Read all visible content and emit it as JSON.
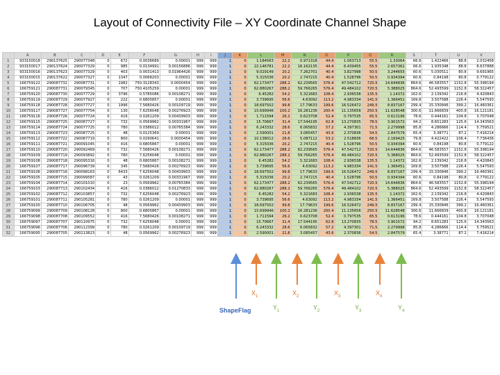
{
  "title": "Layout of Connectivity File – XY Coordinate Channel Shape",
  "columns": [
    "",
    "A",
    "B",
    "C",
    "D",
    "E",
    "F",
    "G",
    "H",
    "I",
    "J",
    "K",
    "L",
    "M",
    "N",
    "O",
    "P",
    "Q",
    "R",
    "S",
    "T",
    "U",
    "V"
  ],
  "rows": [
    [
      "1",
      "933150018",
      "290137625",
      "290077348",
      "0",
      "672",
      "0.0036689",
      "0.00001",
      "999",
      "999",
      "1",
      "0",
      "1.184563",
      "22.2",
      "0.971318",
      "44.4",
      "1.063713",
      "55.5",
      "1.33064",
      "66.6",
      "1.422466",
      "88.8",
      "2.032458"
    ],
    [
      "2",
      "933150017",
      "290137624",
      "290077329",
      "0",
      "985",
      "0.0134991",
      "0.00156886",
      "999",
      "999",
      "1",
      "0",
      "22.146781",
      "22.2",
      "16.162135",
      "44.4",
      "6.439455",
      "55.5",
      "2.657361",
      "66.6",
      "1.935348",
      "88.8",
      "8.637888"
    ],
    [
      "3",
      "933150016",
      "290137623",
      "290077329",
      "0",
      "403",
      "0.0031413",
      "0.01964426",
      "999",
      "999",
      "1",
      "0",
      "9.029149",
      "20.2",
      "7.262701",
      "40.4",
      "3.827998",
      "50.5",
      "3.244655",
      "60.6",
      "5.030511",
      "80.8",
      "9.691965"
    ],
    [
      "4",
      "933150015",
      "290137622",
      "290077327",
      "0",
      "1347",
      "0.0068203",
      "0.00001",
      "999",
      "999",
      "1",
      "0",
      "5.315036",
      "20.2",
      "2.747215",
      "40.4",
      "1.528796",
      "50.5",
      "0.934394",
      "60.6",
      "0.84198",
      "80.8",
      "0.779122"
    ],
    [
      "5",
      "166759122",
      "290087732",
      "290087731",
      "0",
      "1982",
      "750.3128343",
      "0.0000454",
      "999",
      "999",
      "1",
      "0",
      "62.173477",
      "288.2",
      "62.239565",
      "576.4",
      "47.542712",
      "720.5",
      "14.644836",
      "864.6",
      "46.583557",
      "1152.8",
      "55.398194"
    ],
    [
      "6",
      "166759121",
      "290087731",
      "290079345",
      "0",
      "707",
      "750.4105259",
      "0.00001",
      "999",
      "999",
      "1",
      "0",
      "62.880267",
      "288.2",
      "59.766265",
      "576.4",
      "49.484102",
      "720.5",
      "5.388025",
      "864.6",
      "52.493599",
      "1152.8",
      "58.322457"
    ],
    [
      "7",
      "166759120",
      "290087730",
      "290077729",
      "0",
      "3796",
      "0.5785086",
      "0.00108271",
      "999",
      "999",
      "1",
      "0",
      "6.45282",
      "54.2",
      "5.321683",
      "108.4",
      "2.936538",
      "135.5",
      "1.14372",
      "162.6",
      "2.139342",
      "216.8",
      "4.420843"
    ],
    [
      "8",
      "166759119",
      "290087729",
      "290077927",
      "0",
      "222",
      "0.6805857",
      "0.00001",
      "999",
      "999",
      "1",
      "0",
      "3.739695",
      "56.6",
      "4.63092",
      "113.2",
      "4.983334",
      "141.5",
      "1.366451",
      "169.8",
      "3.507588",
      "226.4",
      "5.547593"
    ],
    [
      "9",
      "166759118",
      "290087728",
      "290077727",
      "0",
      "1996",
      "7.5680426",
      "0.00109719",
      "999",
      "999",
      "1",
      "0",
      "18.697502",
      "99.8",
      "17.79633",
      "199.6",
      "16.526472",
      "249.5",
      "8.837167",
      "299.4",
      "15.330846",
      "399.2",
      "16.460361"
    ],
    [
      "10",
      "166759117",
      "290087727",
      "290077754",
      "0",
      "130",
      "7.6256048",
      "0.00276923",
      "999",
      "999",
      "1",
      "0",
      "15.699946",
      "100.2",
      "16.281236",
      "200.4",
      "11.135656",
      "250.5",
      "11.628548",
      "300.6",
      "11.666839",
      "400.8",
      "16.121181"
    ],
    [
      "11",
      "166759116",
      "290087726",
      "290077724",
      "0",
      "416",
      "0.0261209",
      "0.00439903",
      "999",
      "999",
      "1",
      "0",
      "1.711594",
      "26.2",
      "0.623708",
      "52.4",
      "0.797535",
      "65.5",
      "0.613196",
      "78.6",
      "0.444161",
      "104.8",
      "3.707048"
    ],
    [
      "12",
      "166759115",
      "290087725",
      "290087727",
      "0",
      "732",
      "0.0569962",
      "0.00331967",
      "999",
      "999",
      "1",
      "0",
      "15.70667",
      "31.4",
      "17.544195",
      "62.8",
      "13.270835",
      "78.5",
      "3.901572",
      "94.2",
      "8.651283",
      "125.6",
      "14.343563"
    ],
    [
      "13",
      "166759114",
      "290087724",
      "290077725",
      "0",
      "780",
      "0.0386012",
      "0.00765384",
      "999",
      "999",
      "1",
      "0",
      "6.243332",
      "28.6",
      "6.065832",
      "57.2",
      "4.397301",
      "71.5",
      "2.279998",
      "85.8",
      "4.286666",
      "114.4",
      "5.759521"
    ],
    [
      "14",
      "166759113",
      "290087723",
      "290087725",
      "0",
      "48",
      "0.0125369",
      "0.00001",
      "999",
      "999",
      "1",
      "0",
      "2.590001",
      "21.8",
      "3.085457",
      "43.6",
      "2.370836",
      "54.5",
      "2.847579",
      "65.4",
      "3.38771",
      "87.2",
      "7.416214"
    ],
    [
      "15",
      "166759112",
      "290087722",
      "290087719",
      "0",
      "800",
      "0.0290641",
      "0.0000454",
      "999",
      "999",
      "1",
      "0",
      "10.138012",
      "26.6",
      "5.087112",
      "53.2",
      "2.518836",
      "66.5",
      "2.169425",
      "79.8",
      "4.422422",
      "106.4",
      "7.736436"
    ],
    [
      "16",
      "166759111",
      "290087721",
      "290091045",
      "0",
      "416",
      "0.6805867",
      "0.00001",
      "999",
      "999",
      "1",
      "0",
      "5.315036",
      "20.2",
      "2.747215",
      "40.4",
      "1.528796",
      "50.5",
      "0.934394",
      "60.6",
      "0.84198",
      "80.8",
      "0.779122"
    ],
    [
      "17",
      "166759110",
      "290087720",
      "290092469",
      "0",
      "732",
      "7.5680426",
      "0.00108271",
      "999",
      "999",
      "1",
      "0",
      "62.173477",
      "288.2",
      "62.239565",
      "576.4",
      "47.542712",
      "720.5",
      "14.644836",
      "864.6",
      "46.583557",
      "1152.8",
      "55.398194"
    ],
    [
      "18",
      "166759109",
      "290087719",
      "290093892",
      "0",
      "780",
      "7.6256048",
      "0.00001",
      "999",
      "999",
      "1",
      "0",
      "62.880267",
      "288.2",
      "59.766265",
      "576.4",
      "49.484102",
      "720.5",
      "5.388025",
      "864.6",
      "52.493599",
      "1152.8",
      "58.322457"
    ],
    [
      "19",
      "166759108",
      "290087718",
      "290095316",
      "0",
      "48",
      "0.6805867",
      "0.00108271",
      "999",
      "999",
      "1",
      "0",
      "6.45282",
      "54.2",
      "5.321683",
      "108.4",
      "2.936538",
      "135.5",
      "1.14372",
      "162.6",
      "2.139342",
      "216.8",
      "4.420843"
    ],
    [
      "20",
      "166759107",
      "290087717",
      "290096739",
      "0",
      "345",
      "7.5680426",
      "0.00276923",
      "999",
      "999",
      "1",
      "0",
      "3.739695",
      "56.6",
      "4.63092",
      "113.2",
      "4.983334",
      "141.5",
      "1.366451",
      "169.8",
      "3.507588",
      "226.4",
      "5.547593"
    ],
    [
      "21",
      "166759106",
      "290087716",
      "290098163",
      "0",
      "6433",
      "7.6256048",
      "0.00439903",
      "999",
      "999",
      "1",
      "0",
      "18.697502",
      "99.8",
      "17.79633",
      "199.6",
      "16.526472",
      "249.5",
      "8.837167",
      "299.4",
      "15.330846",
      "399.2",
      "16.460361"
    ],
    [
      "22",
      "166759105",
      "290087715",
      "290099587",
      "0",
      "43",
      "0.0261209",
      "0.00331967",
      "999",
      "999",
      "1",
      "0",
      "5.315036",
      "20.2",
      "2.747215",
      "40.4",
      "1.528796",
      "50.5",
      "0.934394",
      "60.6",
      "0.84198",
      "80.8",
      "0.779122"
    ],
    [
      "23",
      "166759104",
      "290087714",
      "290101010",
      "0",
      "23",
      "0.0569962",
      "0.00765384",
      "999",
      "999",
      "1",
      "0",
      "62.173477",
      "288.2",
      "62.239565",
      "576.4",
      "47.542712",
      "720.5",
      "14.644836",
      "864.6",
      "46.583557",
      "1152.8",
      "55.398194"
    ],
    [
      "24",
      "166759103",
      "290087713",
      "290102434",
      "0",
      "416",
      "0.0386012",
      "0.01270833",
      "999",
      "999",
      "1",
      "0",
      "62.880267",
      "288.2",
      "59.766265",
      "576.4",
      "49.484102",
      "720.5",
      "5.388025",
      "864.6",
      "52.493599",
      "1152.8",
      "58.322457"
    ],
    [
      "25",
      "166759102",
      "290087712",
      "290103857",
      "0",
      "732",
      "7.6256048",
      "0.00276923",
      "999",
      "999",
      "1",
      "0",
      "6.45282",
      "54.2",
      "5.321683",
      "108.4",
      "2.936538",
      "135.5",
      "1.14372",
      "162.6",
      "2.139342",
      "216.8",
      "4.420843"
    ],
    [
      "26",
      "166759101",
      "290087711",
      "290105281",
      "0",
      "780",
      "0.0261209",
      "0.00001",
      "999",
      "999",
      "1",
      "0",
      "3.739695",
      "56.6",
      "4.63092",
      "113.2",
      "4.983334",
      "141.5",
      "1.366451",
      "169.8",
      "3.507588",
      "226.4",
      "5.547593"
    ],
    [
      "27",
      "166759100",
      "290087710",
      "290106705",
      "0",
      "48",
      "0.0569962",
      "0.00439903",
      "999",
      "999",
      "1",
      "0",
      "18.697502",
      "99.8",
      "17.79633",
      "199.6",
      "16.526472",
      "249.5",
      "8.837167",
      "299.4",
      "15.330846",
      "399.2",
      "16.460361"
    ],
    [
      "28",
      "166759099",
      "290087709",
      "290108128",
      "0",
      "800",
      "0.6805867",
      "0.00001",
      "999",
      "999",
      "1",
      "0",
      "15.699946",
      "100.2",
      "16.281236",
      "200.4",
      "11.135656",
      "250.5",
      "11.628548",
      "300.6",
      "11.666839",
      "400.8",
      "16.121181"
    ],
    [
      "29",
      "166759098",
      "290087708",
      "290109552",
      "0",
      "416",
      "7.5680426",
      "0.00108271",
      "999",
      "999",
      "1",
      "0",
      "1.711594",
      "26.2",
      "0.623708",
      "52.4",
      "0.797535",
      "65.5",
      "0.613196",
      "78.6",
      "0.444161",
      "104.8",
      "3.707048"
    ],
    [
      "30",
      "166759097",
      "290087707",
      "290110975",
      "0",
      "732",
      "7.6256048",
      "0.00001",
      "999",
      "999",
      "1",
      "0",
      "15.70667",
      "31.4",
      "17.544195",
      "62.8",
      "13.270835",
      "78.5",
      "3.901572",
      "94.2",
      "8.651283",
      "125.6",
      "14.343563"
    ],
    [
      "31",
      "166759096",
      "290087706",
      "290112399",
      "0",
      "780",
      "0.0261209",
      "0.00109719",
      "999",
      "999",
      "1",
      "0",
      "6.243332",
      "28.6",
      "6.065832",
      "57.2",
      "4.397301",
      "71.5",
      "2.279998",
      "85.8",
      "4.286666",
      "114.4",
      "5.759521"
    ],
    [
      "32",
      "166759095",
      "290087705",
      "290113823",
      "0",
      "48",
      "0.0569962",
      "0.00276923",
      "999",
      "999",
      "1",
      "0",
      "2.590001",
      "21.8",
      "3.085457",
      "43.6",
      "2.370836",
      "54.5",
      "2.847579",
      "65.4",
      "3.38771",
      "87.2",
      "7.416214"
    ]
  ],
  "annotations": {
    "shapeflag": "ShapeFlag",
    "x1": "X",
    "x1_sub": "1",
    "x2": "X",
    "x2_sub": "2",
    "x3": "X",
    "x3_sub": "3",
    "x4": "X",
    "x4_sub": "4",
    "y1": "Y",
    "y1_sub": "1",
    "y2": "Y",
    "y2_sub": "2",
    "y3": "Y",
    "y3_sub": "3",
    "y4": "Y",
    "y4_sub": "4"
  },
  "colors": {
    "blue": "#5b8fd6",
    "orange": "#e8813a",
    "green": "#7dbb4f"
  }
}
